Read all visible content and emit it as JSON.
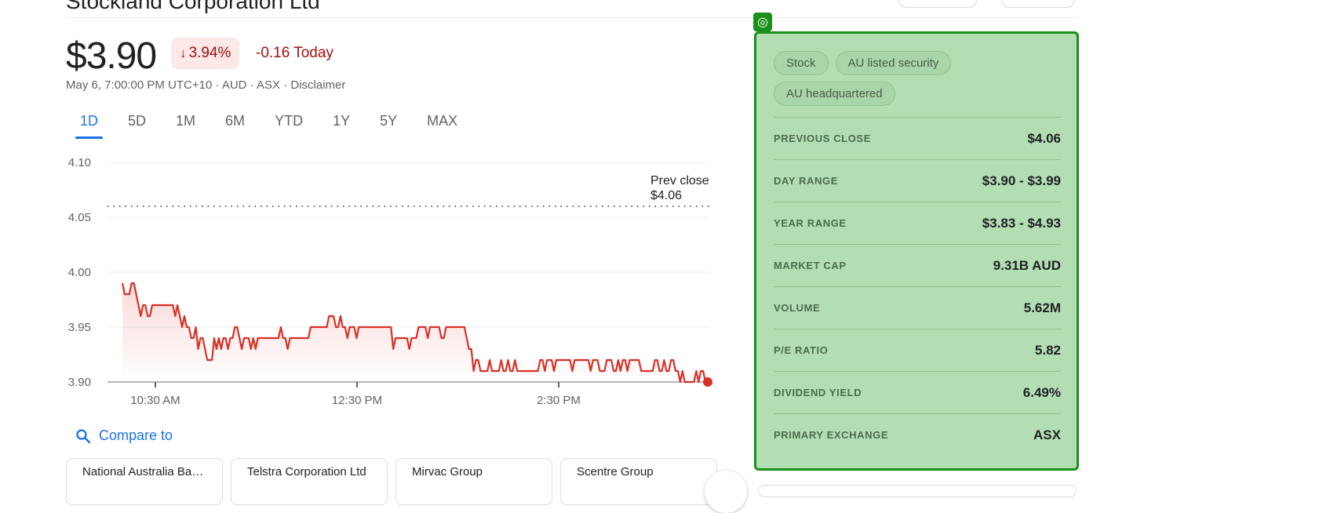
{
  "header": {
    "company": "Stockland Corporation Ltd"
  },
  "quote": {
    "price": "$3.90",
    "change_pct": "3.94%",
    "change_abs": "-0.16 Today",
    "meta": "May 6, 7:00:00 PM UTC+10 · AUD · ASX · Disclaimer",
    "colors": {
      "down": "#d93025",
      "down_text": "#a50e0e",
      "accent": "#1a73e8"
    }
  },
  "tabs": [
    "1D",
    "5D",
    "1M",
    "6M",
    "YTD",
    "1Y",
    "5Y",
    "MAX"
  ],
  "active_tab": "1D",
  "chart_data": {
    "type": "line",
    "series": [
      {
        "values": [
          3.99,
          3.98,
          3.98,
          3.98,
          3.99,
          3.99,
          3.98,
          3.97,
          3.96,
          3.97,
          3.97,
          3.96,
          3.96,
          3.97,
          3.97,
          3.97,
          3.97,
          3.97,
          3.97,
          3.97,
          3.97,
          3.97,
          3.97,
          3.96,
          3.97,
          3.96,
          3.95,
          3.96,
          3.95,
          3.95,
          3.94,
          3.94,
          3.95,
          3.93,
          3.94,
          3.94,
          3.93,
          3.92,
          3.92,
          3.92,
          3.94,
          3.93,
          3.94,
          3.93,
          3.94,
          3.94,
          3.93,
          3.94,
          3.94,
          3.95,
          3.95,
          3.94,
          3.93,
          3.94,
          3.94,
          3.94,
          3.93,
          3.94,
          3.93,
          3.94,
          3.94,
          3.94,
          3.94,
          3.94,
          3.94,
          3.94,
          3.94,
          3.94,
          3.94,
          3.95,
          3.94,
          3.94,
          3.93,
          3.94,
          3.94,
          3.94,
          3.94,
          3.94,
          3.94,
          3.94,
          3.94,
          3.94,
          3.95,
          3.95,
          3.95,
          3.95,
          3.95,
          3.95,
          3.95,
          3.95,
          3.96,
          3.96,
          3.96,
          3.95,
          3.95,
          3.96,
          3.95,
          3.95,
          3.94,
          3.95,
          3.95,
          3.95,
          3.94,
          3.95,
          3.95,
          3.95,
          3.95,
          3.95,
          3.95,
          3.95,
          3.95,
          3.95,
          3.95,
          3.95,
          3.95,
          3.95,
          3.95,
          3.95,
          3.93,
          3.94,
          3.94,
          3.94,
          3.94,
          3.94,
          3.94,
          3.93,
          3.94,
          3.94,
          3.94,
          3.95,
          3.95,
          3.95,
          3.95,
          3.94,
          3.95,
          3.95,
          3.95,
          3.95,
          3.95,
          3.94,
          3.94,
          3.95,
          3.95,
          3.95,
          3.95,
          3.95,
          3.95,
          3.95,
          3.95,
          3.95,
          3.94,
          3.93,
          3.93,
          3.91,
          3.92,
          3.92,
          3.91,
          3.91,
          3.91,
          3.91,
          3.92,
          3.91,
          3.91,
          3.91,
          3.91,
          3.92,
          3.91,
          3.91,
          3.92,
          3.91,
          3.91,
          3.92,
          3.91,
          3.91,
          3.91,
          3.91,
          3.91,
          3.91,
          3.91,
          3.91,
          3.91,
          3.91,
          3.92,
          3.92,
          3.91,
          3.92,
          3.92,
          3.92,
          3.91,
          3.92,
          3.92,
          3.92,
          3.92,
          3.92,
          3.92,
          3.92,
          3.91,
          3.92,
          3.92,
          3.92,
          3.92,
          3.92,
          3.92,
          3.92,
          3.91,
          3.92,
          3.92,
          3.92,
          3.91,
          3.91,
          3.91,
          3.92,
          3.92,
          3.92,
          3.91,
          3.91,
          3.92,
          3.91,
          3.92,
          3.92,
          3.91,
          3.92,
          3.92,
          3.92,
          3.92,
          3.92,
          3.91,
          3.91,
          3.91,
          3.91,
          3.91,
          3.91,
          3.92,
          3.92,
          3.91,
          3.91,
          3.92,
          3.91,
          3.91,
          3.92,
          3.92,
          3.91,
          3.91,
          3.9,
          3.91,
          3.9,
          3.9,
          3.9,
          3.9,
          3.9,
          3.91,
          3.9,
          3.91,
          3.91,
          3.9,
          3.9
        ]
      }
    ],
    "ylim": [
      3.9,
      4.1
    ],
    "y_ticks": [
      "4.10",
      "4.05",
      "4.00",
      "3.95",
      "3.90"
    ],
    "x_ticks": [
      "10:30 AM",
      "12:30 PM",
      "2:30 PM"
    ],
    "prev_close": {
      "label": "Prev close",
      "value": "$4.06",
      "level": 4.06
    },
    "grid": true
  },
  "compare": {
    "label": "Compare to"
  },
  "related": [
    "National Australia Bank…",
    "Telstra Corporation Ltd",
    "Mirvac Group",
    "Scentre Group"
  ],
  "chips": [
    "Stock",
    "AU listed security",
    "AU headquartered"
  ],
  "stats": [
    {
      "label": "PREVIOUS CLOSE",
      "value": "$4.06"
    },
    {
      "label": "DAY RANGE",
      "value": "$3.90 - $3.99"
    },
    {
      "label": "YEAR RANGE",
      "value": "$3.83 - $4.93"
    },
    {
      "label": "MARKET CAP",
      "value": "9.31B AUD"
    },
    {
      "label": "VOLUME",
      "value": "5.62M"
    },
    {
      "label": "P/E RATIO",
      "value": "5.82"
    },
    {
      "label": "DIVIDEND YIELD",
      "value": "6.49%"
    },
    {
      "label": "PRIMARY EXCHANGE",
      "value": "ASX"
    }
  ],
  "icons": {
    "down_arrow": "arrow-down-icon",
    "compare": "search-icon",
    "panel_handle": "target-icon",
    "next": "chevron-right-icon"
  }
}
